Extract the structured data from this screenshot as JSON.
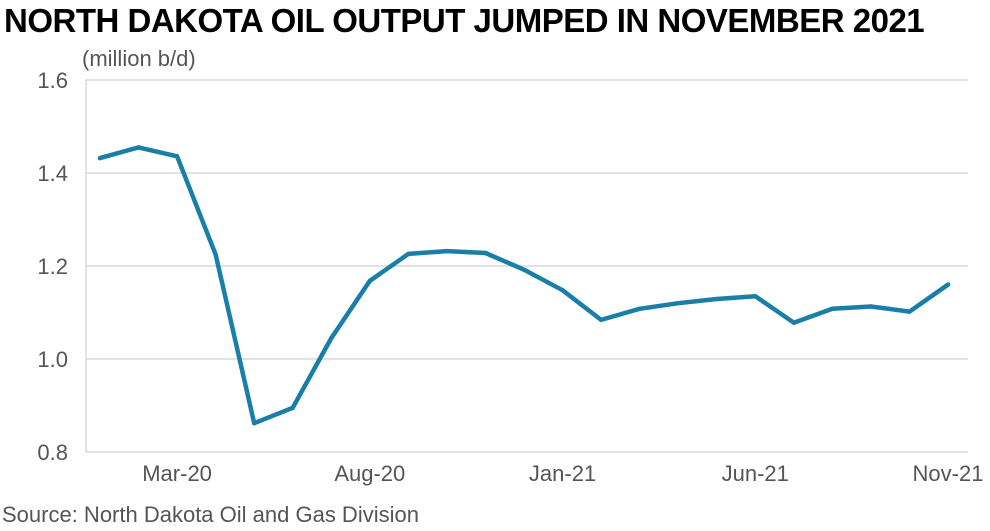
{
  "title": "NORTH DAKOTA OIL OUTPUT JUMPED IN NOVEMBER 2021",
  "unit_label": "(million b/d)",
  "source": "Source: North Dakota Oil and Gas Division",
  "colors": {
    "line": "#1a7fa8",
    "grid": "#d9d9d9",
    "text": "#555555"
  },
  "chart_data": {
    "type": "line",
    "title": "NORTH DAKOTA OIL OUTPUT JUMPED IN NOVEMBER 2021",
    "ylabel": "(million b/d)",
    "xlabel": "",
    "ylim": [
      0.8,
      1.6
    ],
    "yticks": [
      "1.6",
      "1.4",
      "1.2",
      "1.0",
      "0.8"
    ],
    "xticks": [
      "Mar-20",
      "Aug-20",
      "Jan-21",
      "Jun-21",
      "Nov-21"
    ],
    "grid": true,
    "legend": "none",
    "x": [
      "Jan-20",
      "Feb-20",
      "Mar-20",
      "Apr-20",
      "May-20",
      "Jun-20",
      "Jul-20",
      "Aug-20",
      "Sep-20",
      "Oct-20",
      "Nov-20",
      "Dec-20",
      "Jan-21",
      "Feb-21",
      "Mar-21",
      "Apr-21",
      "May-21",
      "Jun-21",
      "Jul-21",
      "Aug-21",
      "Sep-21",
      "Oct-21",
      "Nov-21"
    ],
    "series": [
      {
        "values": [
          1.432,
          1.455,
          1.436,
          1.225,
          0.862,
          0.895,
          1.045,
          1.168,
          1.226,
          1.232,
          1.228,
          1.192,
          1.148,
          1.084,
          1.108,
          1.12,
          1.129,
          1.135,
          1.078,
          1.108,
          1.113,
          1.102,
          1.16
        ]
      }
    ]
  }
}
